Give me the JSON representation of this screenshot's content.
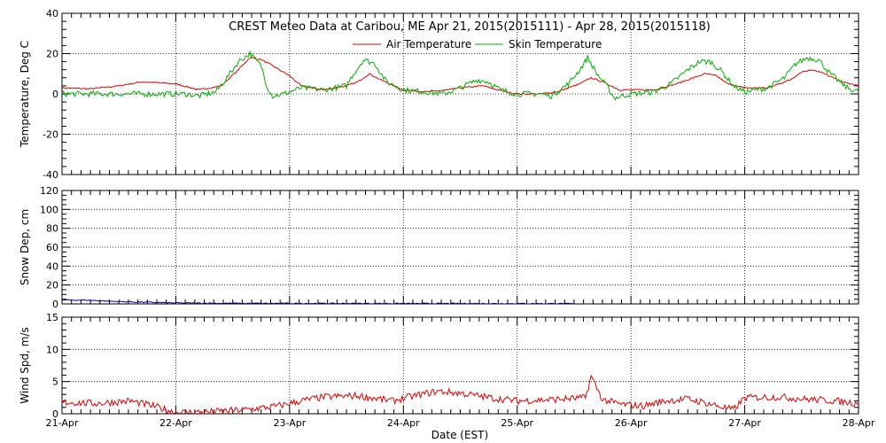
{
  "title": "CREST Meteo Data at Caribou, ME   Apr 21, 2015(2015111) - Apr 28, 2015(2015118)",
  "xlabel": "Date (EST)",
  "x_ticks": [
    "21-Apr",
    "22-Apr",
    "23-Apr",
    "24-Apr",
    "25-Apr",
    "26-Apr",
    "27-Apr",
    "28-Apr"
  ],
  "colors": {
    "air": "#e00000",
    "skin": "#00b000",
    "snow": "#0000a0",
    "wind": "#e00000",
    "axis": "#000000"
  },
  "chart_data": [
    {
      "type": "line",
      "ylabel": "Temperature, Deg C",
      "ylim": [
        -40,
        40
      ],
      "yticks": [
        -40,
        -20,
        0,
        20,
        40
      ],
      "xlim": [
        0,
        7
      ],
      "x_tick_labels": [
        "21-Apr",
        "22-Apr",
        "23-Apr",
        "24-Apr",
        "25-Apr",
        "26-Apr",
        "27-Apr",
        "28-Apr"
      ],
      "grid": true,
      "legend": "top-right",
      "series": [
        {
          "name": "Air Temperature",
          "color": "#e00000",
          "points": [
            [
              0,
              3
            ],
            [
              0.25,
              2.5
            ],
            [
              0.5,
              4
            ],
            [
              0.7,
              6
            ],
            [
              1.0,
              5
            ],
            [
              1.2,
              2
            ],
            [
              1.4,
              4
            ],
            [
              1.55,
              12
            ],
            [
              1.65,
              18
            ],
            [
              1.75,
              17
            ],
            [
              1.85,
              14
            ],
            [
              2.0,
              9
            ],
            [
              2.1,
              4
            ],
            [
              2.3,
              2
            ],
            [
              2.5,
              4
            ],
            [
              2.6,
              6
            ],
            [
              2.7,
              10
            ],
            [
              2.8,
              7
            ],
            [
              3.0,
              2
            ],
            [
              3.2,
              1
            ],
            [
              3.4,
              2
            ],
            [
              3.5,
              3
            ],
            [
              3.7,
              4
            ],
            [
              3.9,
              1
            ],
            [
              4.0,
              0
            ],
            [
              4.2,
              0
            ],
            [
              4.35,
              1
            ],
            [
              4.55,
              5
            ],
            [
              4.65,
              8
            ],
            [
              4.75,
              6
            ],
            [
              4.9,
              2
            ],
            [
              5.0,
              2
            ],
            [
              5.2,
              2
            ],
            [
              5.4,
              5
            ],
            [
              5.55,
              8
            ],
            [
              5.65,
              10
            ],
            [
              5.75,
              9
            ],
            [
              5.85,
              5
            ],
            [
              6.0,
              3
            ],
            [
              6.2,
              3
            ],
            [
              6.4,
              7
            ],
            [
              6.5,
              11
            ],
            [
              6.6,
              12
            ],
            [
              6.7,
              10
            ],
            [
              6.85,
              6
            ],
            [
              7.0,
              4
            ]
          ]
        },
        {
          "name": "Skin Temperature",
          "color": "#00b000",
          "points": [
            [
              0,
              0
            ],
            [
              0.5,
              0
            ],
            [
              1.0,
              0
            ],
            [
              1.1,
              0
            ],
            [
              1.2,
              -1
            ],
            [
              1.35,
              1
            ],
            [
              1.45,
              8
            ],
            [
              1.55,
              16
            ],
            [
              1.65,
              20
            ],
            [
              1.75,
              14
            ],
            [
              1.8,
              4
            ],
            [
              1.85,
              -1
            ],
            [
              1.95,
              0
            ],
            [
              2.1,
              3
            ],
            [
              2.3,
              2
            ],
            [
              2.5,
              4
            ],
            [
              2.55,
              9
            ],
            [
              2.65,
              17
            ],
            [
              2.75,
              15
            ],
            [
              2.85,
              6
            ],
            [
              3.0,
              2
            ],
            [
              3.2,
              1
            ],
            [
              3.35,
              0
            ],
            [
              3.5,
              3
            ],
            [
              3.65,
              7
            ],
            [
              3.75,
              6
            ],
            [
              3.85,
              2
            ],
            [
              4.0,
              0
            ],
            [
              4.2,
              0
            ],
            [
              4.3,
              -1
            ],
            [
              4.45,
              5
            ],
            [
              4.55,
              12
            ],
            [
              4.62,
              18
            ],
            [
              4.7,
              10
            ],
            [
              4.8,
              3
            ],
            [
              4.85,
              -2
            ],
            [
              5.0,
              0
            ],
            [
              5.2,
              1
            ],
            [
              5.35,
              5
            ],
            [
              5.5,
              12
            ],
            [
              5.6,
              16
            ],
            [
              5.7,
              16
            ],
            [
              5.8,
              11
            ],
            [
              5.9,
              4
            ],
            [
              6.0,
              1
            ],
            [
              6.2,
              3
            ],
            [
              6.35,
              8
            ],
            [
              6.45,
              15
            ],
            [
              6.55,
              18
            ],
            [
              6.65,
              17
            ],
            [
              6.75,
              10
            ],
            [
              6.9,
              3
            ],
            [
              7.0,
              1
            ]
          ]
        }
      ]
    },
    {
      "type": "line",
      "ylabel": "Snow Dep, cm",
      "ylim": [
        0,
        120
      ],
      "yticks": [
        0,
        20,
        40,
        60,
        80,
        100,
        120
      ],
      "xlim": [
        0,
        7
      ],
      "x_tick_labels": [
        "21-Apr",
        "22-Apr",
        "23-Apr",
        "24-Apr",
        "25-Apr",
        "26-Apr",
        "27-Apr",
        "28-Apr"
      ],
      "grid": true,
      "series": [
        {
          "color": "#0000a0",
          "points": [
            [
              0,
              4
            ],
            [
              0.2,
              4
            ],
            [
              0.5,
              2.5
            ],
            [
              0.8,
              1.5
            ],
            [
              1.0,
              1
            ],
            [
              1.5,
              0.6
            ],
            [
              2.0,
              0.5
            ],
            [
              3.0,
              0.4
            ],
            [
              4.0,
              0.3
            ],
            [
              4.5,
              0.2
            ]
          ]
        }
      ]
    },
    {
      "type": "line",
      "ylabel": "Wind Spd, m/s",
      "ylim": [
        0,
        15
      ],
      "yticks": [
        0,
        5,
        10,
        15
      ],
      "xlim": [
        0,
        7
      ],
      "x_tick_labels": [
        "21-Apr",
        "22-Apr",
        "23-Apr",
        "24-Apr",
        "25-Apr",
        "26-Apr",
        "27-Apr",
        "28-Apr"
      ],
      "grid": true,
      "series": [
        {
          "color": "#e00000",
          "points": [
            [
              0,
              1.8
            ],
            [
              0.3,
              1.6
            ],
            [
              0.6,
              2.0
            ],
            [
              0.8,
              1.2
            ],
            [
              1.0,
              0.2
            ],
            [
              1.3,
              0.3
            ],
            [
              1.6,
              0.6
            ],
            [
              1.9,
              1.2
            ],
            [
              2.1,
              2.0
            ],
            [
              2.3,
              2.6
            ],
            [
              2.6,
              2.8
            ],
            [
              2.9,
              2.0
            ],
            [
              3.1,
              2.8
            ],
            [
              3.3,
              3.5
            ],
            [
              3.5,
              3.2
            ],
            [
              3.8,
              2.4
            ],
            [
              4.0,
              2.0
            ],
            [
              4.3,
              2.2
            ],
            [
              4.6,
              2.5
            ],
            [
              4.65,
              5.8
            ],
            [
              4.75,
              2.2
            ],
            [
              4.9,
              1.5
            ],
            [
              5.1,
              1.2
            ],
            [
              5.3,
              2.0
            ],
            [
              5.5,
              2.3
            ],
            [
              5.7,
              1.5
            ],
            [
              5.9,
              0.6
            ],
            [
              6.0,
              2.5
            ],
            [
              6.3,
              2.6
            ],
            [
              6.6,
              2.2
            ],
            [
              6.8,
              2.0
            ],
            [
              7.0,
              1.6
            ]
          ]
        }
      ]
    }
  ]
}
